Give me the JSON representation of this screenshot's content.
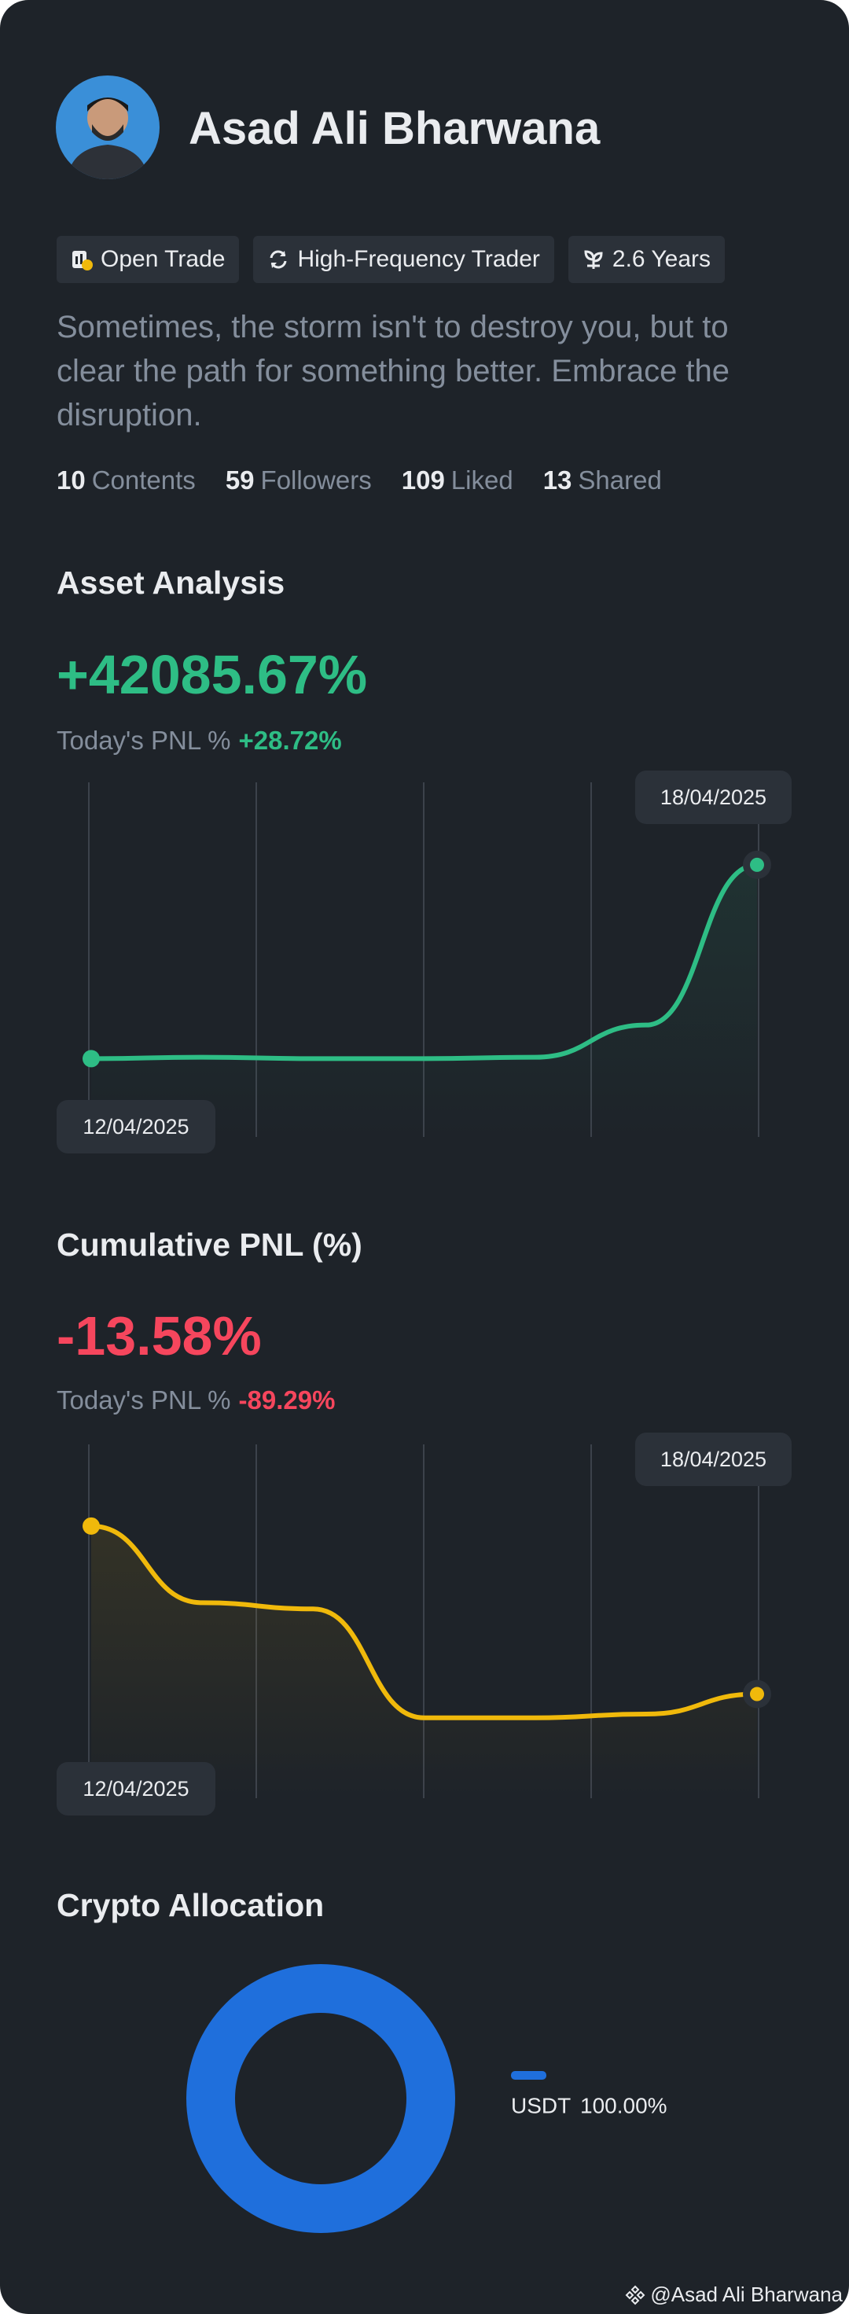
{
  "profile": {
    "name": "Asad Ali Bharwana",
    "tags": [
      "Open Trade",
      "High-Frequency Trader",
      "2.6 Years"
    ],
    "quote": "Sometimes, the storm isn't to destroy you, but to clear the path for something better. Embrace the disruption.",
    "stats": [
      {
        "count": 10,
        "label": "Contents"
      },
      {
        "count": 59,
        "label": "Followers"
      },
      {
        "count": 109,
        "label": "Liked"
      },
      {
        "count": 13,
        "label": "Shared"
      }
    ]
  },
  "chart_data": [
    {
      "type": "line",
      "title": "Asset Analysis",
      "headline": "+42085.67%",
      "today_label": "Today's PNL %",
      "today_value": "+28.72%",
      "x": [
        "12/04/2025",
        null,
        null,
        null,
        null,
        null,
        "18/04/2025"
      ],
      "values": [
        0,
        300,
        0,
        0,
        300,
        7300,
        42085.67
      ],
      "ylim": [
        -17000,
        60000
      ],
      "color": "#2ebd85",
      "grid": true
    },
    {
      "type": "line",
      "title": "Cumulative PNL (%)",
      "headline": "-13.58%",
      "today_label": "Today's PNL %",
      "today_value": "-89.29%",
      "x": [
        "12/04/2025",
        null,
        null,
        null,
        null,
        null,
        "18/04/2025"
      ],
      "values": [
        0,
        -6.2,
        -6.7,
        -15.5,
        -15.5,
        -15.2,
        -13.58
      ],
      "ylim": [
        -22,
        6.6
      ],
      "color": "#f0b90b",
      "grid": true
    },
    {
      "type": "pie",
      "title": "Crypto Allocation",
      "categories": [
        "USDT"
      ],
      "values": [
        100
      ],
      "value_labels": [
        "100.00%"
      ],
      "colors": [
        "#1f6fdc"
      ]
    }
  ],
  "footer": "@Asad Ali Bharwana"
}
